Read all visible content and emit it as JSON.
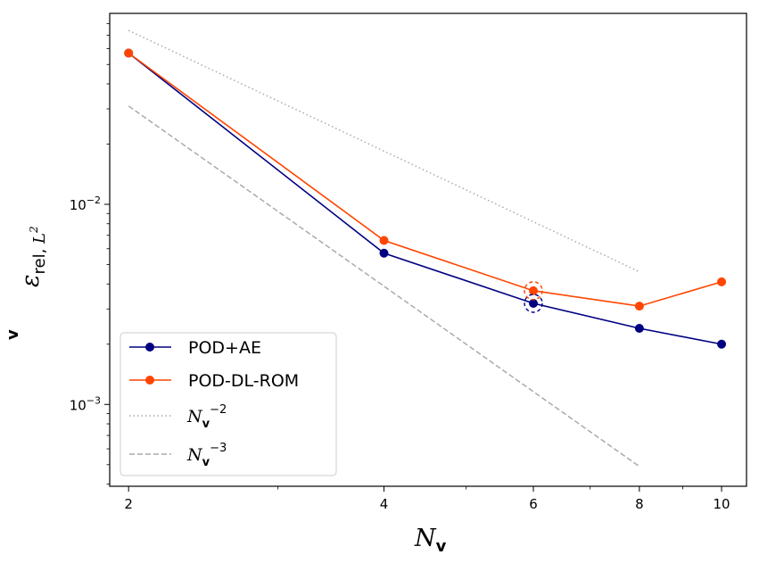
{
  "chart_data": {
    "type": "line",
    "xscale": "log",
    "yscale": "log",
    "xlabel": "N_v",
    "ylabel": "ε^v_rel,L²",
    "xlim": [
      1.9,
      10.7
    ],
    "ylim": [
      0.00039,
      0.09
    ],
    "x_ticks": [
      2,
      4,
      6,
      8,
      10
    ],
    "x_tick_labels": [
      "2",
      "4",
      "6",
      "8",
      "10"
    ],
    "y_major_ticks": [
      0.001,
      0.01
    ],
    "y_tick_labels": [
      {
        "base": "10",
        "exp": "−3"
      },
      {
        "base": "10",
        "exp": "−2"
      }
    ],
    "series": [
      {
        "name": "POD+AE",
        "legend_label": "POD+AE",
        "color": "#000080",
        "style": "solid",
        "marker": "circle",
        "x": [
          2,
          4,
          6,
          8,
          10
        ],
        "y": [
          0.057,
          0.0057,
          0.0032,
          0.0024,
          0.002
        ]
      },
      {
        "name": "POD-DL-ROM",
        "legend_label": "POD-DL-ROM",
        "color": "#ff4500",
        "style": "solid",
        "marker": "circle",
        "x": [
          2,
          4,
          6,
          8,
          10
        ],
        "y": [
          0.057,
          0.0066,
          0.0037,
          0.0031,
          0.0041
        ]
      },
      {
        "name": "N_v^-2 reference",
        "legend_base": "N",
        "legend_sub": "v",
        "legend_exp": "−2",
        "color": "#aaaaaa",
        "style": "dotted",
        "x": [
          2,
          8
        ],
        "y": [
          0.074,
          0.0046
        ]
      },
      {
        "name": "N_v^-3 reference",
        "legend_base": "N",
        "legend_sub": "v",
        "legend_exp": "−3",
        "color": "#aaaaaa",
        "style": "dashed",
        "x": [
          2,
          8
        ],
        "y": [
          0.031,
          0.00049
        ]
      }
    ],
    "annotations": [
      {
        "type": "dashed-circle",
        "x": 6,
        "y": 0.0032,
        "color": "#000080"
      },
      {
        "type": "dashed-circle",
        "x": 6,
        "y": 0.0037,
        "color": "#ff4500"
      }
    ],
    "legend_position": "lower-left"
  }
}
